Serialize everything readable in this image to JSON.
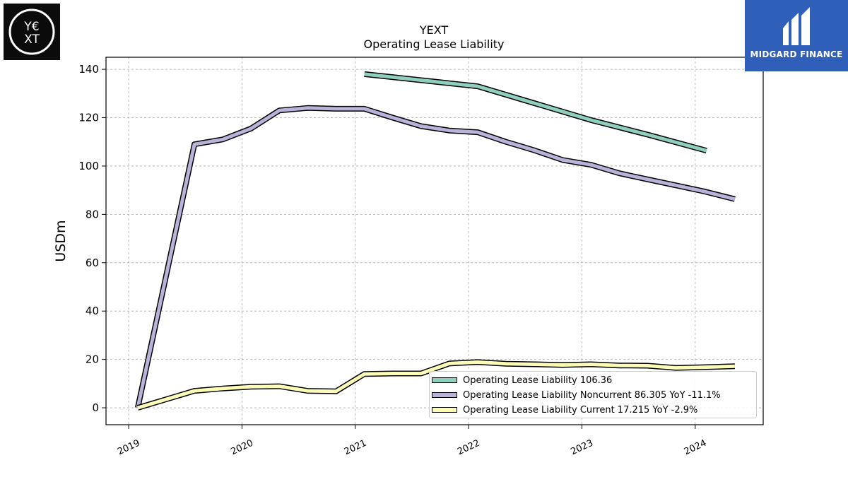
{
  "chart_data": {
    "type": "line",
    "title": "YEXT",
    "subtitle": "Operating Lease Liability",
    "ylabel": "USDm",
    "xlabel": "",
    "ylim": [
      -7,
      145
    ],
    "xlim": [
      2018.8,
      2024.6
    ],
    "yticks": [
      0,
      20,
      40,
      60,
      80,
      100,
      120,
      140
    ],
    "xticks": [
      2019,
      2020,
      2021,
      2022,
      2023,
      2024
    ],
    "xtick_labels": [
      "2019",
      "2020",
      "2021",
      "2022",
      "2023",
      "2024"
    ],
    "grid": true,
    "legend_position": "lower-right",
    "series": [
      {
        "name": "Operating Lease Liability",
        "legend": "Operating Lease Liability  106.36",
        "color": "#8ecfc0",
        "points": [
          [
            2021.08,
            138
          ],
          [
            2022.08,
            133
          ],
          [
            2022.58,
            126
          ],
          [
            2023.08,
            119
          ],
          [
            2023.58,
            113
          ],
          [
            2024.1,
            106.36
          ]
        ]
      },
      {
        "name": "Operating Lease Liability Noncurrent",
        "legend": "Operating Lease Liability Noncurrent  86.305 YoY -11.1%",
        "color": "#b8b3d9",
        "points": [
          [
            2019.08,
            0
          ],
          [
            2019.58,
            109
          ],
          [
            2019.83,
            111
          ],
          [
            2020.08,
            115.5
          ],
          [
            2020.33,
            123
          ],
          [
            2020.58,
            124
          ],
          [
            2020.83,
            123.7
          ],
          [
            2021.08,
            123.7
          ],
          [
            2021.33,
            120
          ],
          [
            2021.58,
            116.5
          ],
          [
            2021.83,
            114.7
          ],
          [
            2022.08,
            114
          ],
          [
            2022.33,
            110
          ],
          [
            2022.58,
            106.5
          ],
          [
            2022.83,
            102.5
          ],
          [
            2023.08,
            100.5
          ],
          [
            2023.33,
            97
          ],
          [
            2023.58,
            94.5
          ],
          [
            2023.83,
            92
          ],
          [
            2024.08,
            89.5
          ],
          [
            2024.35,
            86.3
          ]
        ]
      },
      {
        "name": "Operating Lease Liability Current",
        "legend": "Operating Lease Liability Current  17.215 YoY -2.9%",
        "color": "#fdfcb6",
        "points": [
          [
            2019.08,
            0
          ],
          [
            2019.58,
            7
          ],
          [
            2019.83,
            8
          ],
          [
            2020.08,
            8.7
          ],
          [
            2020.33,
            8.9
          ],
          [
            2020.58,
            7
          ],
          [
            2020.83,
            6.8
          ],
          [
            2021.08,
            14
          ],
          [
            2021.33,
            14.2
          ],
          [
            2021.58,
            14.2
          ],
          [
            2021.83,
            18.3
          ],
          [
            2022.08,
            18.9
          ],
          [
            2022.33,
            18.2
          ],
          [
            2022.58,
            18
          ],
          [
            2022.83,
            17.7
          ],
          [
            2023.08,
            18
          ],
          [
            2023.33,
            17.5
          ],
          [
            2023.58,
            17.4
          ],
          [
            2023.83,
            16.5
          ],
          [
            2024.08,
            16.8
          ],
          [
            2024.35,
            17.215
          ]
        ]
      }
    ]
  },
  "branding": {
    "left_logo": "YEXT",
    "right_logo": "MIDGARD FINANCE"
  }
}
